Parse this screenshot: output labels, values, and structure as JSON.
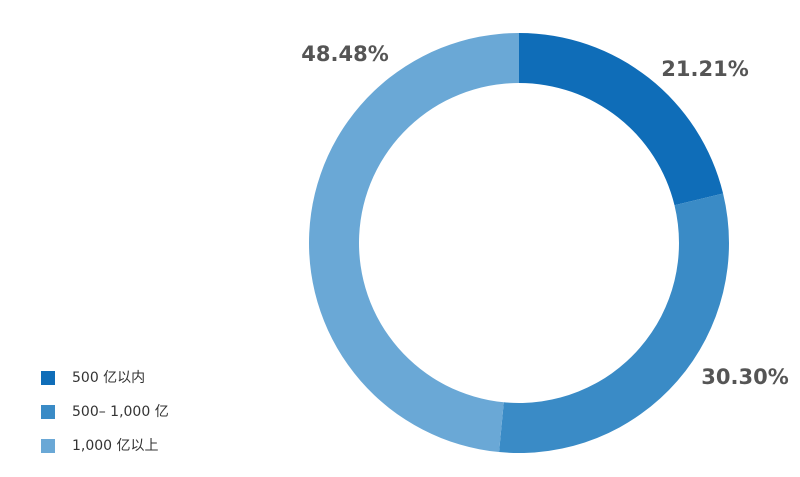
{
  "chart_data": {
    "type": "donut",
    "categories": [
      "500 亿以内",
      "500– 1,000 亿",
      "1,000 亿以上"
    ],
    "values": [
      21.21,
      30.3,
      48.48
    ],
    "value_labels": [
      "21.21%",
      "30.30%",
      "48.48%"
    ],
    "colors": [
      "#0f6db8",
      "#3a8bc6",
      "#6aa8d6"
    ],
    "legend": "bottom-left"
  }
}
